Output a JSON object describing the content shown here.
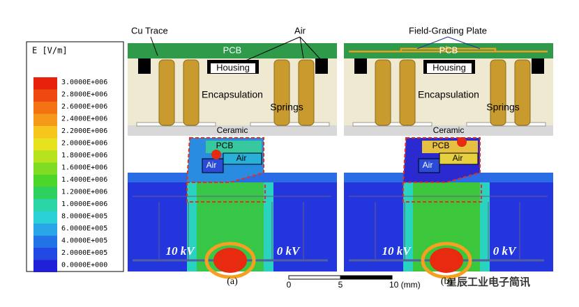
{
  "legend": {
    "title": "E [V/m]",
    "levels": [
      {
        "label": "3.0000E+006",
        "color": "#e8210c"
      },
      {
        "label": "2.8000E+006",
        "color": "#ee4a10"
      },
      {
        "label": "2.6000E+006",
        "color": "#f27214"
      },
      {
        "label": "2.4000E+006",
        "color": "#f59a18"
      },
      {
        "label": "2.2000E+006",
        "color": "#f7c61c"
      },
      {
        "label": "2.0000E+006",
        "color": "#e6e21e"
      },
      {
        "label": "1.8000E+006",
        "color": "#b7e21e"
      },
      {
        "label": "1.6000E+006",
        "color": "#80dc22"
      },
      {
        "label": "1.4000E+006",
        "color": "#4cd62a"
      },
      {
        "label": "1.2000E+006",
        "color": "#2ed060"
      },
      {
        "label": "1.0000E+006",
        "color": "#2ad6a8"
      },
      {
        "label": "8.0000E+005",
        "color": "#2ad2d8"
      },
      {
        "label": "6.0000E+005",
        "color": "#28a6e8"
      },
      {
        "label": "4.0000E+005",
        "color": "#2472e8"
      },
      {
        "label": "2.0000E+005",
        "color": "#2248e4"
      },
      {
        "label": "0.0000E+000",
        "color": "#2020d8"
      }
    ]
  },
  "panels": [
    {
      "caption": "(a)",
      "annotations": [
        "Cu Trace",
        "Air"
      ],
      "pcb": "PCB",
      "housing": "Housing",
      "encapsulation": "Encapsulation",
      "springs": "Springs",
      "ceramic": "Ceramic",
      "inset": [
        "PCB",
        "Air",
        "Air"
      ],
      "voltages": [
        "10 kV",
        "0 kV"
      ]
    },
    {
      "caption": "(b)",
      "annotations": [
        "Field-Grading Plate"
      ],
      "pcb": "PCB",
      "housing": "Housing",
      "encapsulation": "Encapsulation",
      "springs": "Springs",
      "ceramic": "Ceramic",
      "inset": [
        "PCB",
        "Air",
        "Air"
      ],
      "voltages": [
        "10 kV",
        "0 kV"
      ]
    }
  ],
  "scale_bar": {
    "ticks": [
      "0",
      "5",
      "10 (mm)"
    ]
  },
  "watermark": "星辰工业电子简讯"
}
